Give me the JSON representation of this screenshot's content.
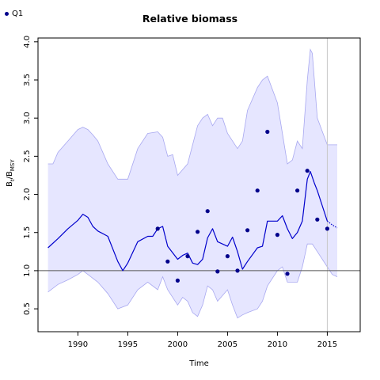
{
  "chart_data": {
    "type": "line",
    "title": "Relative biomass",
    "xlabel": "Time",
    "ylabel": {
      "main": "B",
      "sub1": "t",
      "sep": "/B",
      "sub2": "MSY"
    },
    "xlim": [
      1986,
      2018.3
    ],
    "ylim": [
      0.2,
      4.05
    ],
    "xticks": [
      1990,
      1995,
      2000,
      2005,
      2010,
      2015
    ],
    "yticks": [
      0.5,
      1.0,
      1.5,
      2.0,
      2.5,
      3.0,
      3.5,
      4.0
    ],
    "ytick_labels": [
      "0.5",
      "1.0",
      "1.5",
      "2.0",
      "2.5",
      "3.0",
      "3.5",
      "4.0"
    ],
    "reference_line_y": 1.0,
    "vertical_line_x": 2015,
    "colors": {
      "line": "#0000cc",
      "band_fill": "#e6e6ff",
      "band_edge": "#a8a8f0",
      "points": "#00008b",
      "refline": "#555555",
      "vline": "#c8c8c8"
    },
    "legend": {
      "label": "Q1",
      "position": "top-left"
    },
    "median": {
      "x": [
        1987,
        1988,
        1989,
        1990,
        1990.5,
        1991,
        1991.5,
        1992,
        1993,
        1994,
        1994.5,
        1995,
        1996,
        1997,
        1997.5,
        1998,
        1998.5,
        1999,
        2000,
        2000.5,
        2001,
        2001.5,
        2002,
        2002.5,
        2003,
        2003.5,
        2004,
        2005,
        2005.5,
        2006,
        2006.5,
        2007,
        2008,
        2008.5,
        2009,
        2010,
        2010.5,
        2011,
        2011.5,
        2012,
        2012.5,
        2013,
        2013.3,
        2013.7,
        2014,
        2014.5,
        2015
      ],
      "y": [
        1.3,
        1.42,
        1.55,
        1.66,
        1.74,
        1.7,
        1.58,
        1.52,
        1.45,
        1.12,
        1.0,
        1.1,
        1.38,
        1.45,
        1.45,
        1.55,
        1.58,
        1.32,
        1.15,
        1.2,
        1.23,
        1.1,
        1.08,
        1.15,
        1.43,
        1.55,
        1.38,
        1.32,
        1.44,
        1.25,
        1.02,
        1.12,
        1.3,
        1.32,
        1.65,
        1.65,
        1.72,
        1.55,
        1.42,
        1.5,
        1.65,
        2.2,
        2.3,
        2.15,
        2.05,
        1.85,
        1.65
      ]
    },
    "projection": {
      "x": [
        2015,
        2015.5,
        2016
      ],
      "y": [
        1.65,
        1.6,
        1.56
      ]
    },
    "upper_band": {
      "x": [
        1987,
        1987.5,
        1988,
        1989,
        1990,
        1990.5,
        1991,
        1991.5,
        1992,
        1993,
        1994,
        1995,
        1996,
        1997,
        1998,
        1998.5,
        1999,
        1999.5,
        2000,
        2001,
        2002,
        2002.5,
        2003,
        2003.5,
        2004,
        2004.5,
        2005,
        2006,
        2006.5,
        2007,
        2008,
        2008.5,
        2009,
        2010,
        2011,
        2011.5,
        2012,
        2012.5,
        2013,
        2013.3,
        2013.5,
        2014,
        2015,
        2016
      ],
      "y": [
        2.4,
        2.4,
        2.55,
        2.7,
        2.85,
        2.88,
        2.85,
        2.78,
        2.7,
        2.4,
        2.2,
        2.2,
        2.6,
        2.8,
        2.82,
        2.75,
        2.5,
        2.52,
        2.25,
        2.4,
        2.9,
        3.0,
        3.05,
        2.9,
        3.0,
        3.0,
        2.8,
        2.6,
        2.7,
        3.1,
        3.4,
        3.5,
        3.55,
        3.2,
        2.4,
        2.45,
        2.7,
        2.6,
        3.5,
        3.9,
        3.85,
        3.0,
        2.65,
        2.65
      ]
    },
    "lower_band": {
      "x": [
        1987,
        1988,
        1989,
        1990,
        1990.5,
        1991,
        1992,
        1993,
        1994,
        1995,
        1996,
        1997,
        1998,
        1998.5,
        1999,
        2000,
        2000.5,
        2001,
        2001.5,
        2002,
        2002.5,
        2003,
        2003.5,
        2004,
        2005,
        2005.5,
        2006,
        2006.5,
        2007,
        2008,
        2008.5,
        2009,
        2010,
        2010.5,
        2011,
        2012,
        2012.5,
        2013,
        2013.5,
        2014,
        2015,
        2015.5,
        2016
      ],
      "y": [
        0.72,
        0.82,
        0.88,
        0.95,
        1.0,
        0.95,
        0.85,
        0.7,
        0.5,
        0.55,
        0.75,
        0.85,
        0.75,
        0.92,
        0.75,
        0.55,
        0.65,
        0.6,
        0.45,
        0.4,
        0.55,
        0.8,
        0.75,
        0.6,
        0.75,
        0.55,
        0.38,
        0.42,
        0.45,
        0.5,
        0.6,
        0.8,
        1.0,
        1.05,
        0.85,
        0.85,
        1.05,
        1.35,
        1.35,
        1.25,
        1.05,
        0.95,
        0.92
      ]
    },
    "points": {
      "x": [
        1998,
        1999,
        2000,
        2001,
        2002,
        2003,
        2004,
        2005,
        2006,
        2007,
        2008,
        2009,
        2010,
        2011,
        2012,
        2013,
        2014,
        2015
      ],
      "y": [
        1.55,
        1.12,
        0.87,
        1.19,
        1.51,
        1.78,
        0.99,
        1.19,
        1.0,
        1.53,
        2.05,
        2.82,
        1.47,
        0.96,
        2.05,
        2.31,
        1.67,
        1.55
      ]
    }
  }
}
